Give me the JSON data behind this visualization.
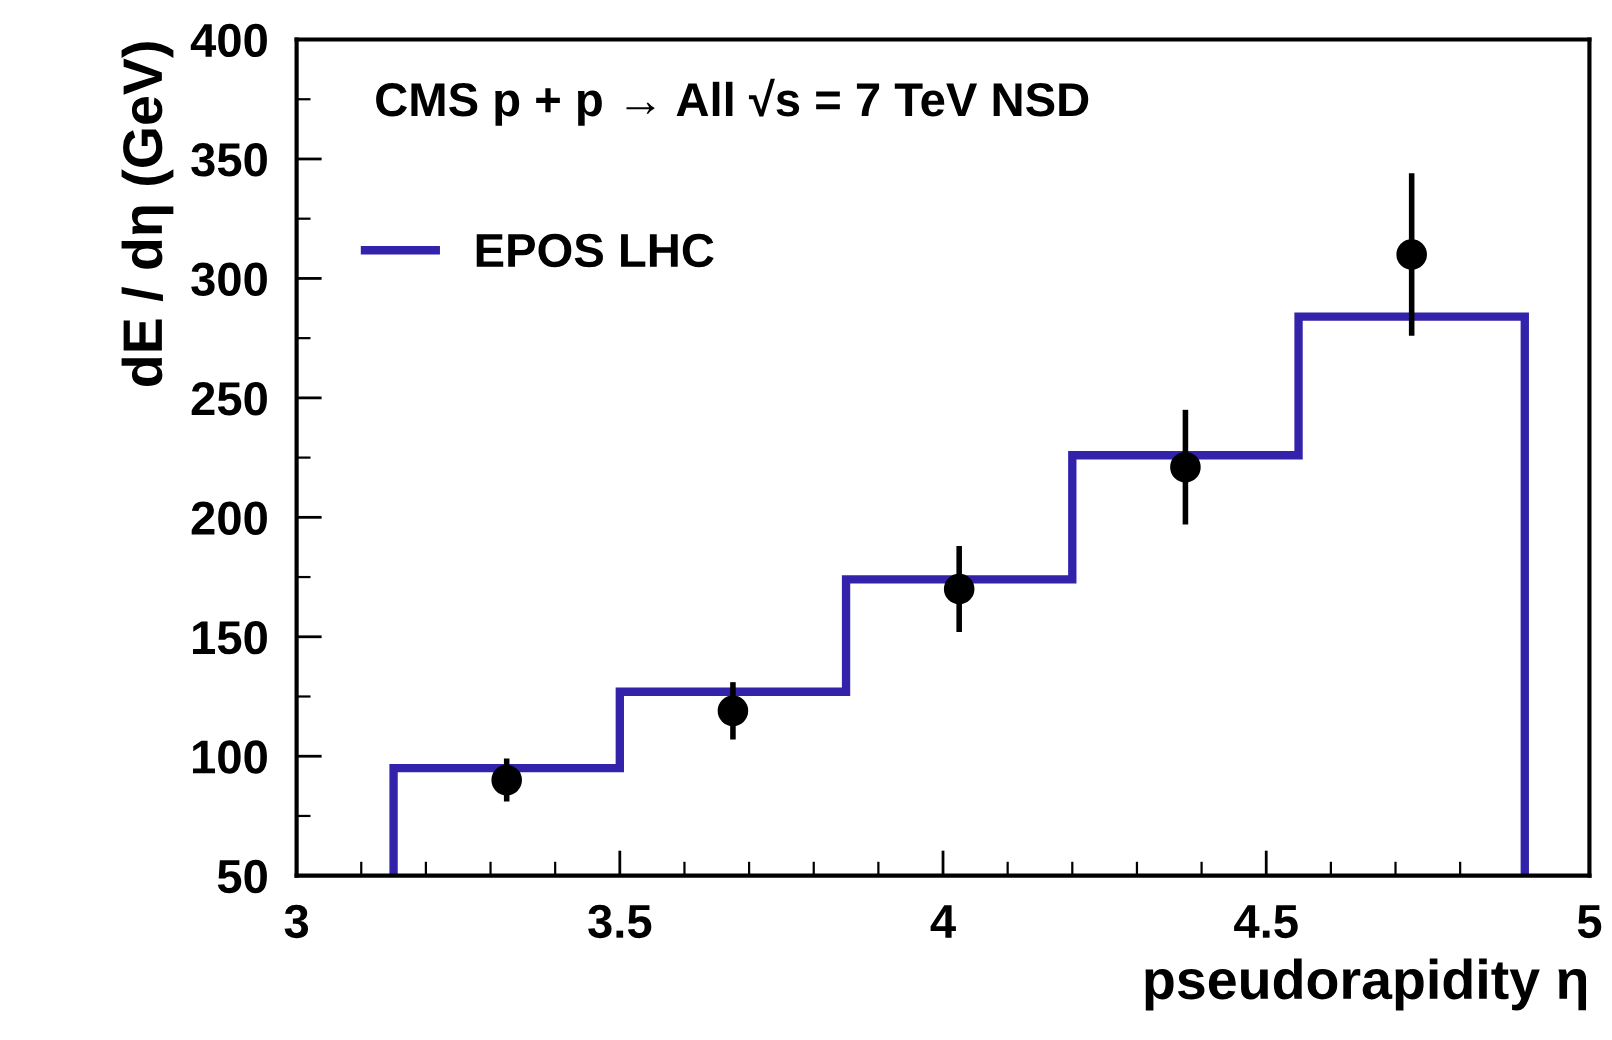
{
  "chart_data": {
    "type": "histogram",
    "xlabel": "pseudorapidity η",
    "ylabel": "dE / dη (GeV)",
    "annotations": [
      "CMS p + p → All √s = 7 TeV NSD"
    ],
    "xlim": [
      3,
      5
    ],
    "xticks": [
      3,
      3.5,
      4,
      4.5,
      5
    ],
    "ylim": [
      50,
      400
    ],
    "yticks": [
      50,
      100,
      150,
      200,
      250,
      300,
      350,
      400
    ],
    "grid": false,
    "legend": "top left",
    "marker": "circle",
    "series": [
      {
        "name": "EPOS LHC",
        "color": "#3322aa",
        "bins": [
          3.15,
          3.5,
          3.85,
          4.2,
          4.55,
          4.9
        ],
        "values": [
          95,
          127,
          174,
          226,
          284
        ]
      },
      {
        "type": "scatter",
        "color": "#000000",
        "x": [
          3.325,
          3.675,
          4.025,
          4.375,
          4.725
        ],
        "values": [
          90,
          119,
          170,
          221,
          310
        ],
        "errors": [
          9,
          12,
          18,
          24,
          34
        ]
      }
    ]
  }
}
